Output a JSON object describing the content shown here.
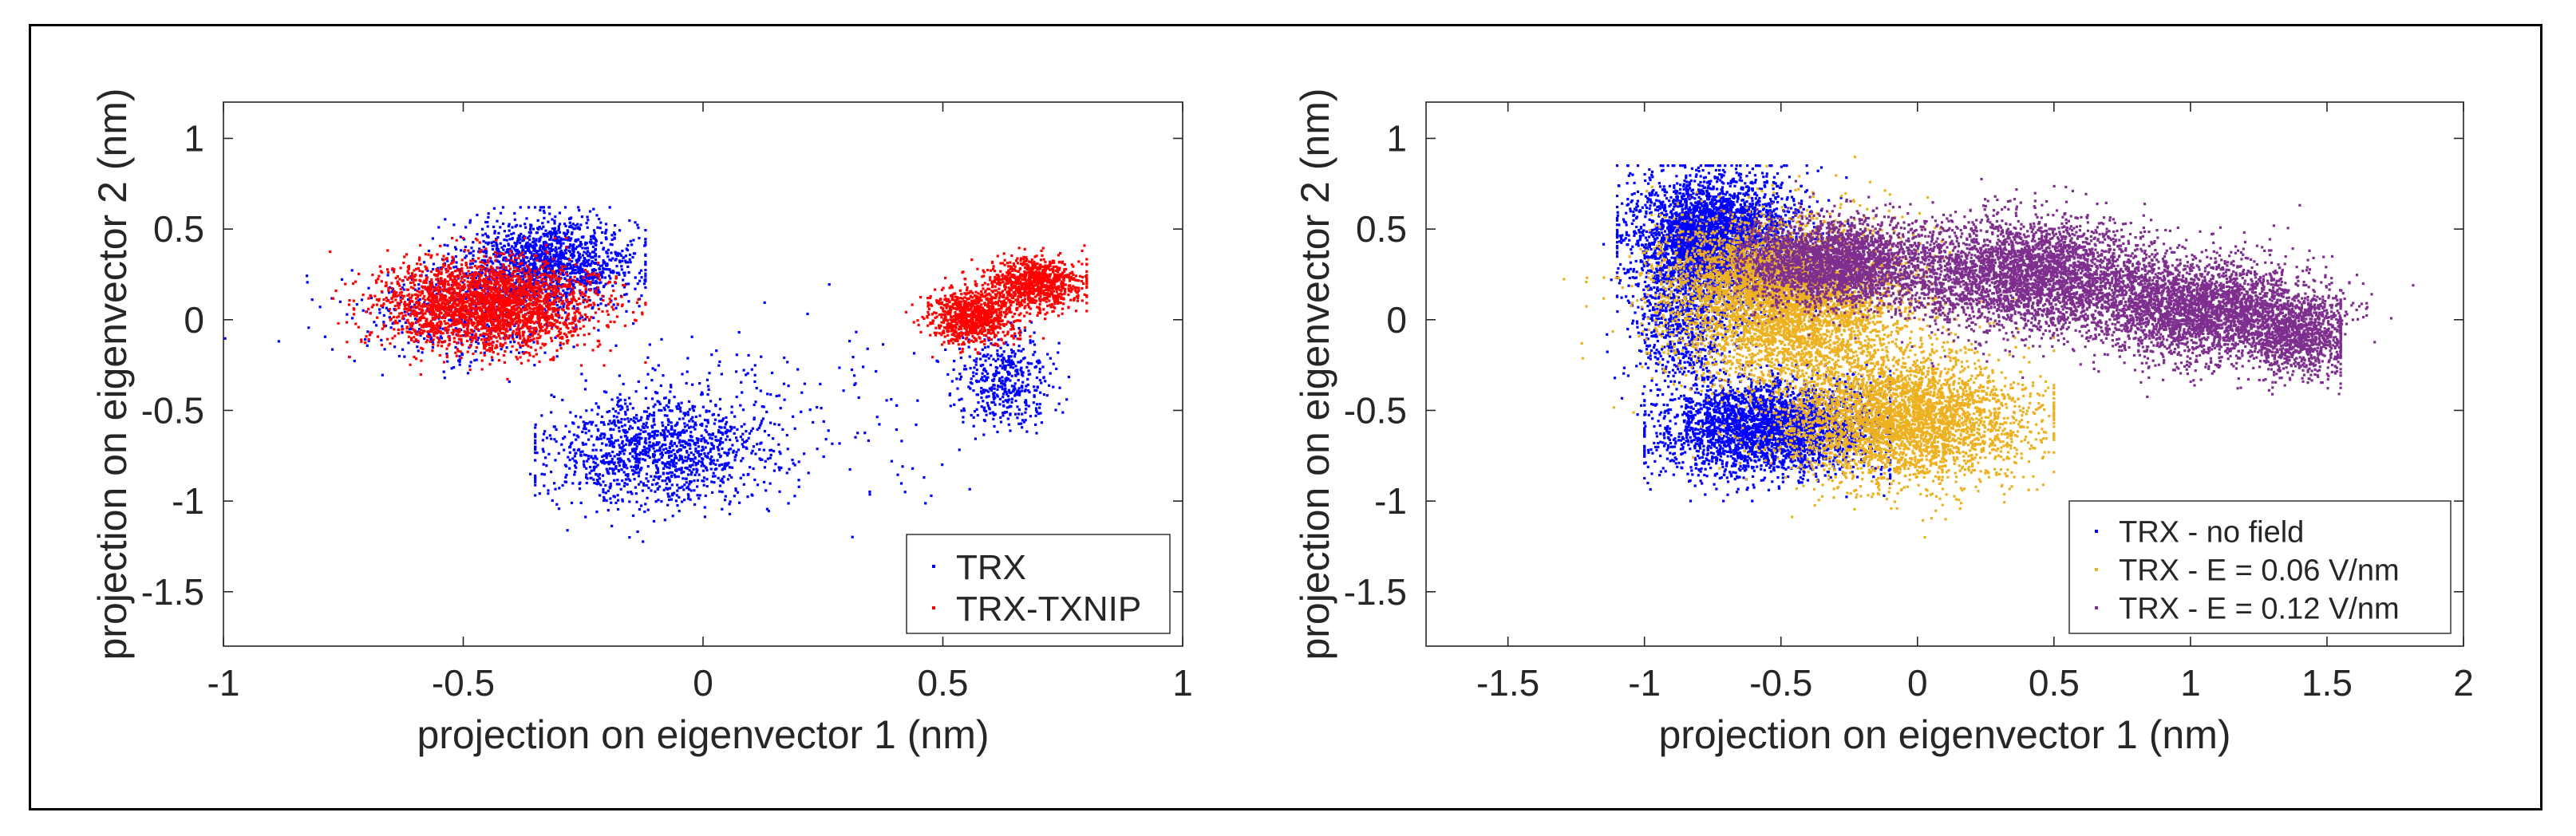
{
  "chart_data": [
    {
      "type": "scatter",
      "xlabel": "projection on eigenvector 1 (nm)",
      "ylabel": "projection on eigenvector 2 (nm)",
      "xlim": [
        -1,
        1
      ],
      "ylim": [
        -1.8,
        1.2
      ],
      "xticks": [
        -1,
        -0.5,
        0,
        0.5,
        1
      ],
      "xtick_labels": [
        "-1",
        "-0.5",
        "0",
        "0.5",
        "1"
      ],
      "yticks": [
        1,
        0.5,
        0,
        -0.5,
        -1,
        -1.5
      ],
      "ytick_labels": [
        "1",
        "0.5",
        "0",
        "-0.5",
        "-1",
        "-1.5"
      ],
      "grid": false,
      "legend_position": "bottom-right",
      "series": [
        {
          "name": "TRX",
          "color": "#0000ff",
          "clusters": [
            {
              "cx": -0.32,
              "cy": 0.32,
              "sx": 0.09,
              "sy": 0.12,
              "n": 1500,
              "x_range": [
                -0.62,
                -0.12
              ],
              "y_range": [
                -0.05,
                0.62
              ]
            },
            {
              "cx": -0.5,
              "cy": 0.02,
              "sx": 0.12,
              "sy": 0.14,
              "n": 500
            },
            {
              "cx": -0.1,
              "cy": -0.72,
              "sx": 0.11,
              "sy": 0.15,
              "n": 1300,
              "x_range": [
                -0.35,
                0.2
              ],
              "y_range": [
                -1.2,
                -0.3
              ]
            },
            {
              "cx": 0.63,
              "cy": -0.33,
              "sx": 0.05,
              "sy": 0.12,
              "n": 450
            },
            {
              "cx": 0.18,
              "cy": -0.55,
              "sx": 0.2,
              "sy": 0.25,
              "n": 180
            }
          ]
        },
        {
          "name": "TRX-TXNIP",
          "color": "#ff0000",
          "clusters": [
            {
              "cx": -0.45,
              "cy": 0.08,
              "sx": 0.11,
              "sy": 0.12,
              "n": 2800,
              "x_range": [
                -0.85,
                -0.12
              ],
              "y_range": [
                -0.35,
                0.45
              ]
            },
            {
              "cx": 0.56,
              "cy": 0.02,
              "sx": 0.045,
              "sy": 0.07,
              "n": 900
            },
            {
              "cx": 0.69,
              "cy": 0.2,
              "sx": 0.05,
              "sy": 0.07,
              "n": 900,
              "x_range": [
                0.42,
                0.8
              ],
              "y_range": [
                -0.2,
                0.45
              ]
            }
          ]
        }
      ]
    },
    {
      "type": "scatter",
      "xlabel": "projection on eigenvector 1 (nm)",
      "ylabel": "projection on eigenvector 2 (nm)",
      "xlim": [
        -1.8,
        2
      ],
      "ylim": [
        -1.8,
        1.2
      ],
      "xticks": [
        -1.5,
        -1,
        -0.5,
        0,
        0.5,
        1,
        1.5,
        2
      ],
      "xtick_labels": [
        "-1.5",
        "-1",
        "-0.5",
        "0",
        "0.5",
        "1",
        "1.5",
        "2"
      ],
      "yticks": [
        1,
        0.5,
        0,
        -0.5,
        -1,
        -1.5
      ],
      "ytick_labels": [
        "1",
        "0.5",
        "0",
        "-0.5",
        "-1",
        "-1.5"
      ],
      "grid": false,
      "legend_position": "bottom-right",
      "series": [
        {
          "name": "TRX - no field",
          "color": "#0000ff",
          "clusters": [
            {
              "cx": -0.75,
              "cy": 0.45,
              "sx": 0.15,
              "sy": 0.17,
              "n": 3500,
              "x_range": [
                -1.1,
                -0.2
              ],
              "y_range": [
                -0.2,
                0.85
              ]
            },
            {
              "cx": -0.55,
              "cy": -0.6,
              "sx": 0.2,
              "sy": 0.13,
              "n": 3000,
              "x_range": [
                -1.0,
                -0.1
              ],
              "y_range": [
                -1.0,
                -0.25
              ]
            },
            {
              "cx": -0.85,
              "cy": 0.0,
              "sx": 0.1,
              "sy": 0.2,
              "n": 800
            }
          ]
        },
        {
          "name": "TRX - E = 0.06 V/nm",
          "color": "#edb120",
          "clusters": [
            {
              "cx": -0.45,
              "cy": 0.05,
              "sx": 0.22,
              "sy": 0.22,
              "n": 3500
            },
            {
              "cx": -0.05,
              "cy": -0.55,
              "sx": 0.22,
              "sy": 0.17,
              "n": 3500,
              "x_range": [
                -0.8,
                0.5
              ],
              "y_range": [
                -1.2,
                0.5
              ]
            },
            {
              "cx": -0.6,
              "cy": 0.25,
              "sx": 0.18,
              "sy": 0.15,
              "n": 1200
            }
          ]
        },
        {
          "name": "TRX - E = 0.12 V/nm",
          "color": "#7e2f8e",
          "clusters": [
            {
              "cx": -0.3,
              "cy": 0.32,
              "sx": 0.18,
              "sy": 0.12,
              "n": 2500
            },
            {
              "cx": 0.4,
              "cy": 0.25,
              "sx": 0.25,
              "sy": 0.15,
              "n": 3500
            },
            {
              "cx": 1.05,
              "cy": 0.05,
              "sx": 0.22,
              "sy": 0.13,
              "n": 3000
            },
            {
              "cx": 1.4,
              "cy": -0.1,
              "sx": 0.1,
              "sy": 0.1,
              "n": 1000,
              "x_range": [
                -0.55,
                1.55
              ],
              "y_range": [
                -0.6,
                0.65
              ]
            }
          ]
        }
      ]
    }
  ]
}
